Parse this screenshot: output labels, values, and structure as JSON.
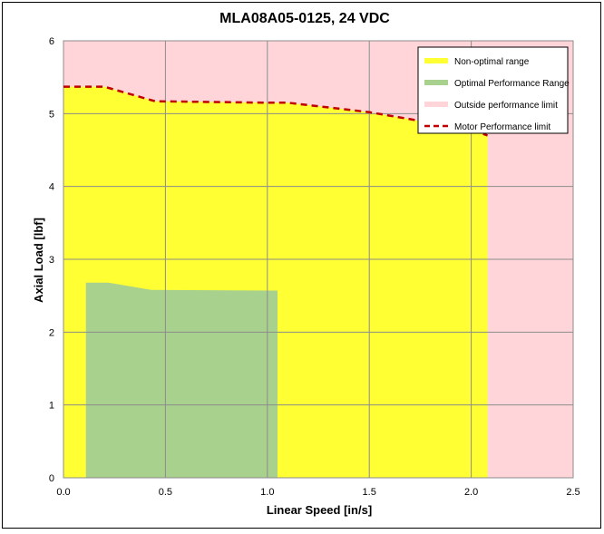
{
  "chart_data": {
    "type": "area",
    "title": "MLA08A05-0125, 24 VDC",
    "xlabel": "Linear Speed [in/s]",
    "ylabel": "Axial Load [lbf]",
    "xlim": [
      0,
      2.5
    ],
    "ylim": [
      0,
      6
    ],
    "x_ticks": [
      "0.0",
      "0.5",
      "1.0",
      "1.5",
      "2.0",
      "2.5"
    ],
    "y_ticks": [
      "0",
      "1",
      "2",
      "3",
      "4",
      "5",
      "6"
    ],
    "grid": true,
    "legend_position": "top-right",
    "background_series": {
      "name": "Outside performance limit",
      "color": "#ffd5d9"
    },
    "series": [
      {
        "name": "Non-optimal range",
        "kind": "area",
        "color": "#ffff33",
        "x": [
          0,
          0.2,
          0.45,
          1.0,
          1.1,
          1.5,
          2.0,
          2.08
        ],
        "y": [
          5.37,
          5.37,
          5.17,
          5.15,
          5.15,
          5.02,
          4.78,
          4.7
        ]
      },
      {
        "name": "Optimal Performance Range",
        "kind": "area",
        "color": "#a9d18e",
        "x": [
          0.11,
          0.22,
          0.43,
          1.05
        ],
        "y": [
          2.68,
          2.68,
          2.58,
          2.57
        ]
      },
      {
        "name": "Motor Performance limit",
        "kind": "line",
        "dashed": true,
        "color": "#c00000",
        "x": [
          0,
          0.2,
          0.45,
          1.0,
          1.1,
          1.5,
          2.0,
          2.08
        ],
        "y": [
          5.37,
          5.37,
          5.17,
          5.15,
          5.15,
          5.02,
          4.78,
          4.7
        ]
      }
    ]
  }
}
